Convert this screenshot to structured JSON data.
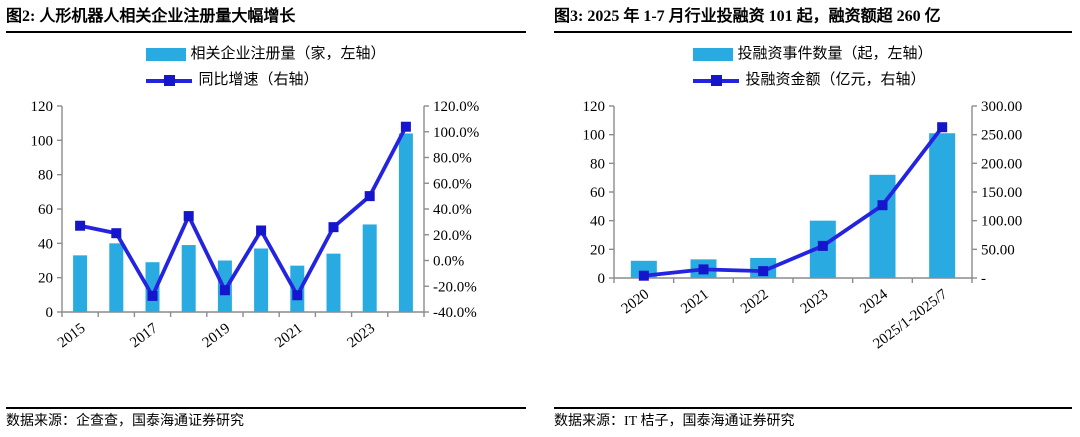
{
  "colors": {
    "bar": "#29ABE2",
    "line": "#2424E0",
    "marker": "#1515CC",
    "axis": "#8C8C8C"
  },
  "chart_data": [
    {
      "id": "fig2",
      "type": "bar+line",
      "title": "图2:  人形机器人相关企业注册量大幅增长",
      "categories": [
        "2015",
        "2016",
        "2017",
        "2018",
        "2019",
        "2020",
        "2021",
        "2022",
        "2023",
        "2024"
      ],
      "x_axis_labels_shown": [
        "2015",
        "2017",
        "2019",
        "2021",
        "2023"
      ],
      "series": [
        {
          "name": "相关企业注册量（家，左轴）",
          "type": "bar",
          "axis": "left",
          "values": [
            33,
            40,
            29,
            39,
            30,
            37,
            27,
            34,
            51,
            104
          ]
        },
        {
          "name": "同比增速（右轴）",
          "type": "line",
          "axis": "right",
          "unit": "%",
          "values": [
            27.0,
            21.2,
            -27.5,
            34.5,
            -23.1,
            23.3,
            -27.0,
            25.9,
            50.0,
            103.9
          ]
        }
      ],
      "left_axis": {
        "min": 0,
        "max": 120,
        "tick_labels": [
          "0",
          "20",
          "40",
          "60",
          "80",
          "100",
          "120"
        ]
      },
      "right_axis": {
        "min": -40,
        "max": 120,
        "tick_labels": [
          "-40.0%",
          "-20.0%",
          "0.0%",
          "20.0%",
          "40.0%",
          "60.0%",
          "80.0%",
          "100.0%",
          "120.0%"
        ]
      },
      "grid": "off",
      "legend_position": "top-center",
      "source": "数据来源：企查查，国泰海通证券研究"
    },
    {
      "id": "fig3",
      "type": "bar+line",
      "title": "图3:  2025 年 1-7 月行业投融资 101 起，融资额超 260 亿",
      "categories": [
        "2020",
        "2021",
        "2022",
        "2023",
        "2024",
        "2025/1-2025/7"
      ],
      "x_axis_labels_shown": [
        "2020",
        "2021",
        "2022",
        "2023",
        "2024",
        "2025/1-2025/7"
      ],
      "series": [
        {
          "name": "投融资事件数量（起，左轴）",
          "type": "bar",
          "axis": "left",
          "values": [
            12,
            13,
            14,
            40,
            72,
            101
          ]
        },
        {
          "name": "投融资金额（亿元，右轴）",
          "type": "line",
          "axis": "right",
          "unit": "亿元",
          "values": [
            4,
            15,
            12,
            56,
            127,
            263
          ]
        }
      ],
      "left_axis": {
        "min": 0,
        "max": 120,
        "tick_labels": [
          "0",
          "20",
          "40",
          "60",
          "80",
          "100",
          "120"
        ]
      },
      "right_axis": {
        "min": 0,
        "max": 300,
        "tick_labels": [
          "-",
          "50.00",
          "100.00",
          "150.00",
          "200.00",
          "250.00",
          "300.00"
        ]
      },
      "grid": "off",
      "legend_position": "top-center",
      "source": "数据来源：IT 桔子，国泰海通证券研究"
    }
  ]
}
